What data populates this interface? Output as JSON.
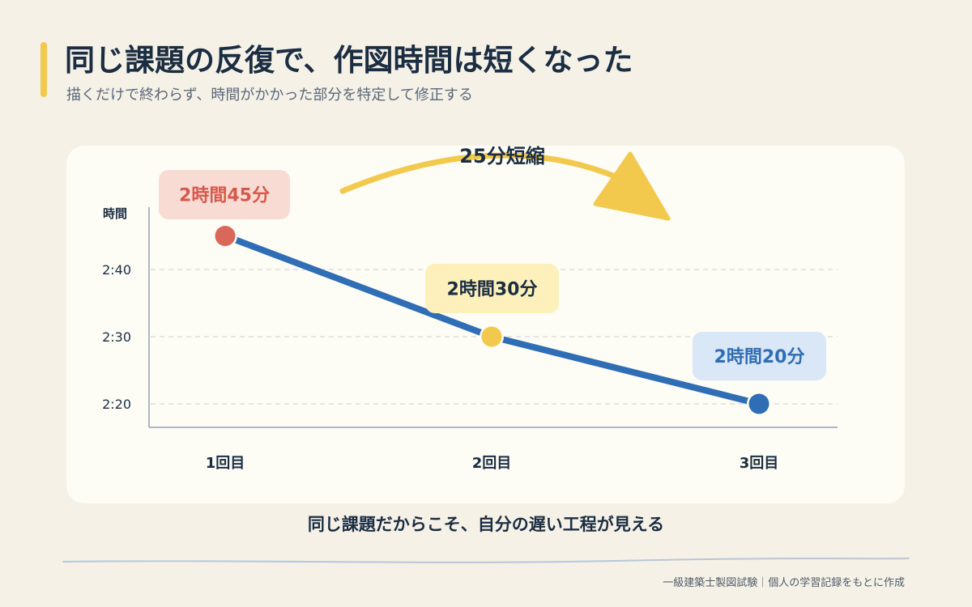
{
  "header": {
    "title": "同じ課題の反復で、作図時間は短くなった",
    "subtitle": "描くだけで終わらず、時間がかかった部分を特定して修正する"
  },
  "chart_data": {
    "type": "line",
    "ylabel": "時間",
    "categories": [
      "1回目",
      "2回目",
      "3回目"
    ],
    "y_ticks": [
      "2:20",
      "2:30",
      "2:40"
    ],
    "ylim_minutes": [
      135,
      170
    ],
    "series": [
      {
        "values_minutes": [
          165,
          150,
          140
        ]
      }
    ],
    "data_labels": [
      "2時間45分",
      "2時間30分",
      "2時間20分"
    ],
    "point_colors": [
      "#d9675a",
      "#f2c94c",
      "#2f6db5"
    ],
    "label_bg_colors": [
      "#f8dcd4",
      "#fdf0bb",
      "#d9e7f7"
    ],
    "label_text_colors": [
      "#d6584c",
      "#1b2d42",
      "#2f6db5"
    ],
    "line_color": "#2f6db5",
    "grid": true,
    "annotation": "25分短縮",
    "arrow_color": "#f2c94c"
  },
  "caption": "同じ課題だからこそ、自分の遅い工程が見える",
  "footer": "一級建築士製図試験｜個人の学習記録をもとに作成"
}
